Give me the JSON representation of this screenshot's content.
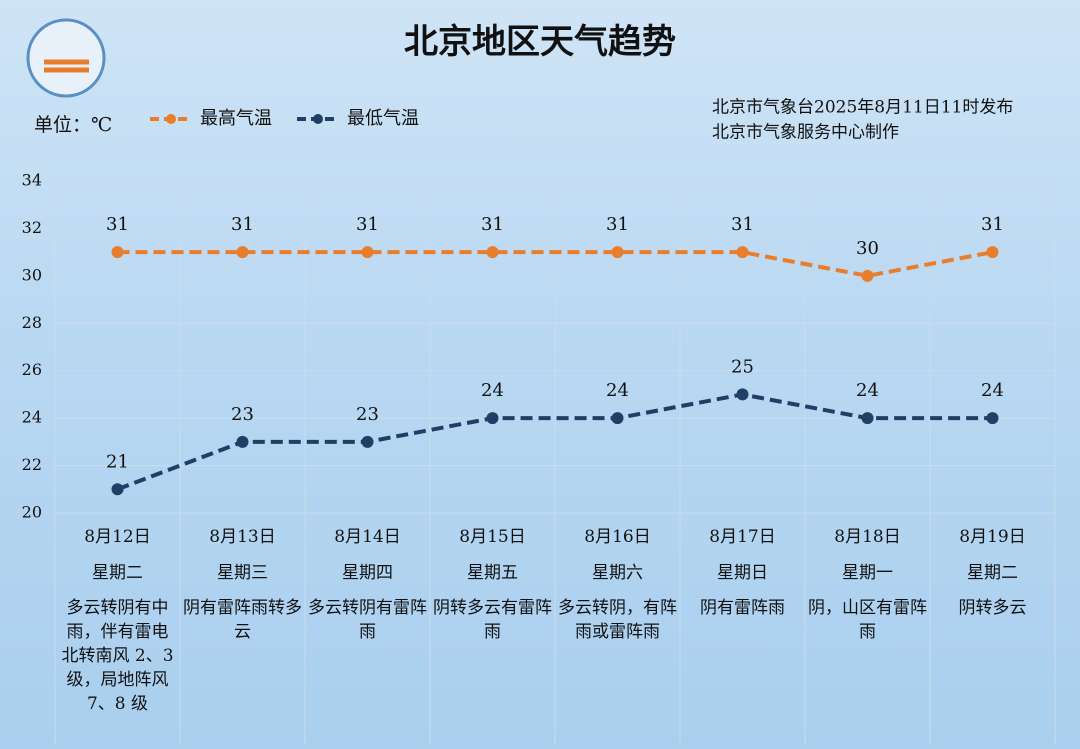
{
  "chart_data": {
    "type": "line",
    "title": "北京地区天气趋势",
    "unit_label": "单位：℃",
    "source": [
      "北京市气象台2025年8月11日11时发布",
      "北京市气象服务中心制作"
    ],
    "categories": [
      "8月12日",
      "8月13日",
      "8月14日",
      "8月15日",
      "8月16日",
      "8月17日",
      "8月18日",
      "8月19日"
    ],
    "weekdays": [
      "星期二",
      "星期三",
      "星期四",
      "星期五",
      "星期六",
      "星期日",
      "星期一",
      "星期二"
    ],
    "weather": [
      "多云转阴有中雨，伴有雷电 北转南风 2、3 级，局地阵风 7、8 级",
      "阴有雷阵雨转多云",
      "多云转阴有雷阵雨",
      "阴转多云有雷阵雨",
      "多云转阴，有阵雨或雷阵雨",
      "阴有雷阵雨",
      "阴，山区有雷阵雨",
      "阴转多云"
    ],
    "series": [
      {
        "name": "最高气温",
        "color": "#e87e2c",
        "values": [
          31,
          31,
          31,
          31,
          31,
          31,
          30,
          31
        ]
      },
      {
        "name": "最低气温",
        "color": "#1f3f66",
        "values": [
          21,
          23,
          23,
          24,
          24,
          25,
          24,
          24
        ]
      }
    ],
    "ylim": [
      20,
      34
    ],
    "yticks": [
      20,
      22,
      24,
      26,
      28,
      30,
      32,
      34
    ],
    "grid": true
  }
}
